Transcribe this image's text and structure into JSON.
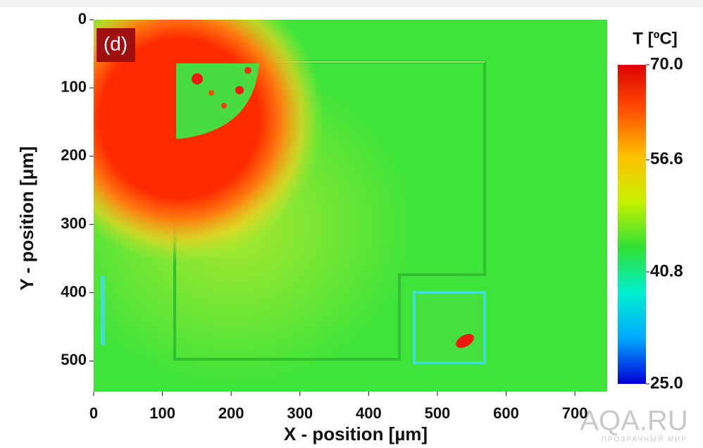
{
  "chart_data": {
    "type": "heatmap",
    "panel_label": "(d)",
    "xlabel": "X - position [µm]",
    "ylabel": "Y - position [μm]",
    "xlim": [
      0,
      747
    ],
    "xticks": [
      0,
      100,
      200,
      300,
      400,
      500,
      600,
      700
    ],
    "ylim": [
      0,
      545
    ],
    "y_inverted": true,
    "yticks": [
      0,
      100,
      200,
      300,
      400,
      500
    ],
    "colorbar": {
      "title": "T [ºC]",
      "clim": [
        25,
        70
      ],
      "ticks": [
        {
          "value": 70,
          "label": "70.0"
        },
        {
          "value": 56.6,
          "label": "56.6"
        },
        {
          "value": 40.8,
          "label": "40.8"
        },
        {
          "value": 25,
          "label": "25.0"
        }
      ],
      "colors": [
        "#0000d8",
        "#00a8ff",
        "#00f0d0",
        "#30e030",
        "#c8f000",
        "#ffc000",
        "#ff5000",
        "#e00000"
      ]
    }
  },
  "watermark": {
    "text": "AQA.RU",
    "subtext": "ПРОЗРАЧНЫЙ МИР"
  }
}
